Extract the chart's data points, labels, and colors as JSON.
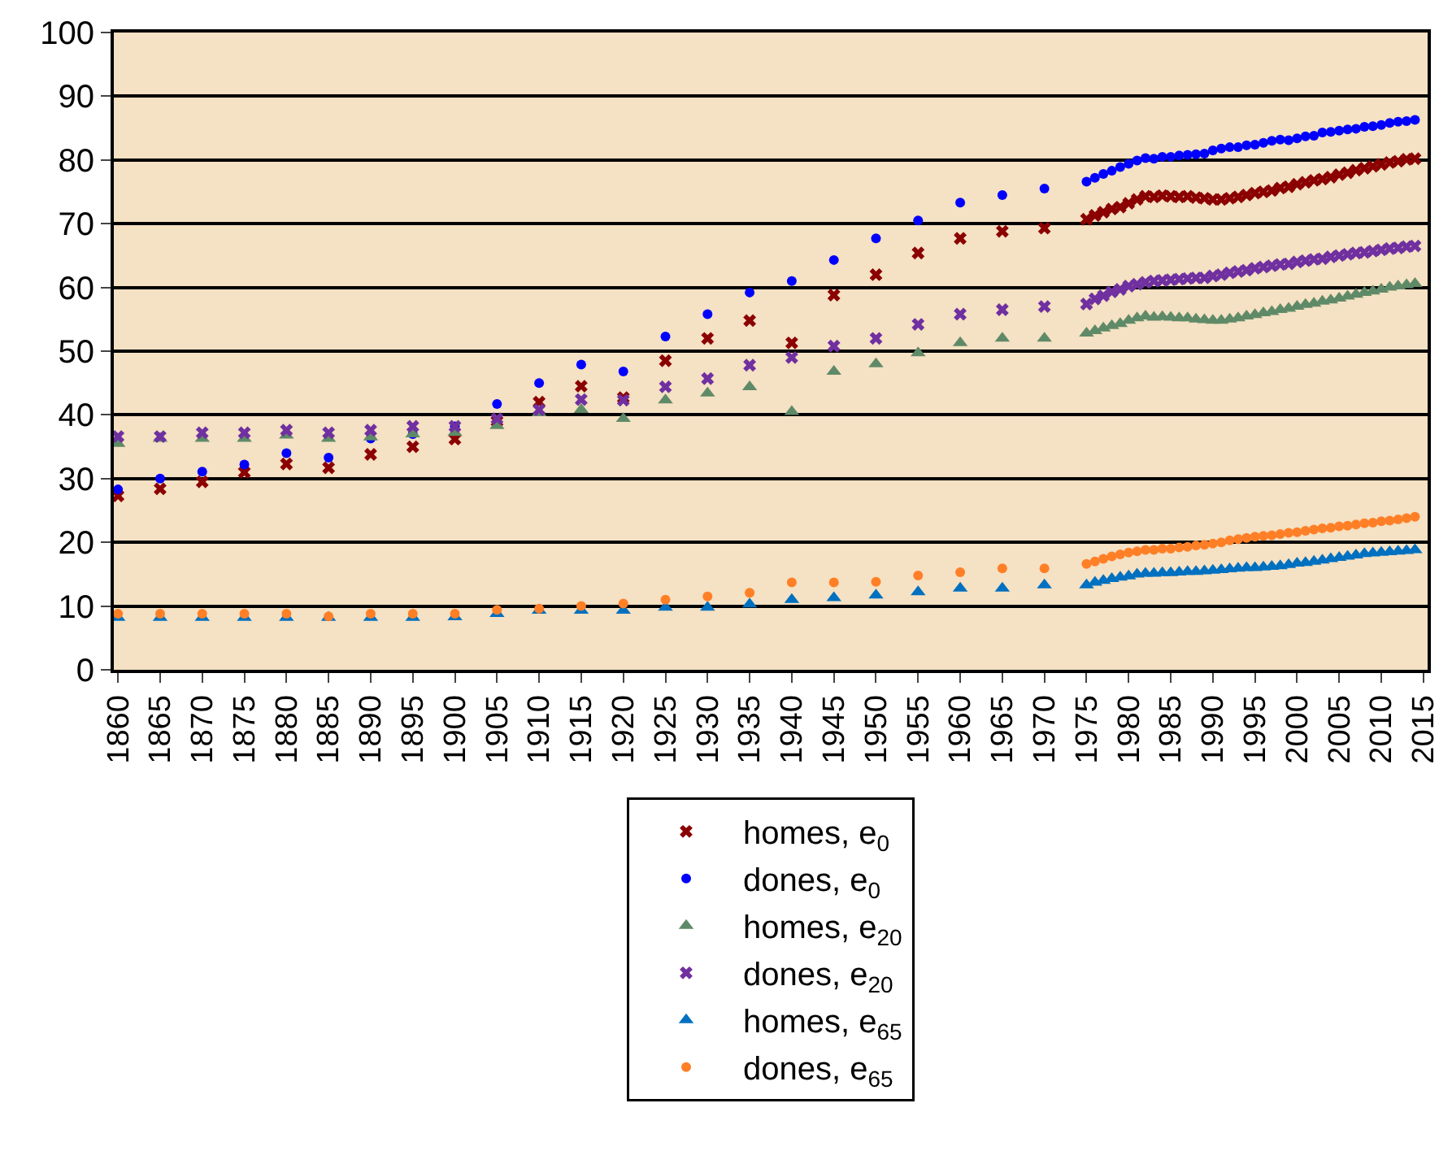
{
  "chart_data": {
    "type": "scatter",
    "x": [
      1860,
      1865,
      1870,
      1875,
      1880,
      1885,
      1890,
      1895,
      1900,
      1905,
      1910,
      1915,
      1920,
      1925,
      1930,
      1935,
      1940,
      1945,
      1950,
      1955,
      1960,
      1965,
      1970,
      1975,
      1976,
      1977,
      1978,
      1979,
      1980,
      1981,
      1982,
      1983,
      1984,
      1985,
      1986,
      1987,
      1988,
      1989,
      1990,
      1991,
      1992,
      1993,
      1994,
      1995,
      1996,
      1997,
      1998,
      1999,
      2000,
      2001,
      2002,
      2003,
      2004,
      2005,
      2006,
      2007,
      2008,
      2009,
      2010,
      2011,
      2012,
      2013,
      2014
    ],
    "series": [
      {
        "name": "homes, e$_{0}$",
        "color": "#8b0000",
        "marker": "cross",
        "values": [
          27.3,
          28.4,
          29.5,
          31,
          32.3,
          31.7,
          33.8,
          35,
          36.2,
          39,
          42,
          44.5,
          42.7,
          48.5,
          52,
          54.8,
          51.3,
          58.8,
          62,
          65.4,
          67.7,
          68.8,
          69.3,
          70.7,
          71.3,
          71.8,
          72.3,
          72.6,
          73.2,
          73.8,
          74.3,
          74.2,
          74.4,
          74.3,
          74.2,
          74.3,
          74.1,
          74,
          73.8,
          73.8,
          74,
          74.2,
          74.5,
          74.8,
          75,
          75.2,
          75.6,
          75.8,
          76.2,
          76.5,
          76.8,
          77,
          77.3,
          77.7,
          78,
          78.4,
          78.7,
          79,
          79.3,
          79.6,
          79.8,
          80.1,
          80.2
        ]
      },
      {
        "name": "dones, e$_{0}$",
        "color": "#0000ff",
        "marker": "circle",
        "values": [
          28.3,
          30,
          31.1,
          32.2,
          34,
          33.3,
          36.3,
          37,
          38.2,
          41.7,
          45,
          47.9,
          46.8,
          52.3,
          55.8,
          59.2,
          61,
          64.3,
          67.7,
          70.5,
          73.3,
          74.5,
          75.5,
          76.6,
          77.2,
          77.8,
          78.3,
          78.9,
          79.4,
          79.9,
          80.3,
          80.2,
          80.5,
          80.5,
          80.7,
          80.8,
          80.9,
          81,
          81.5,
          81.8,
          82,
          82,
          82.3,
          82.4,
          82.7,
          83,
          83.2,
          83.1,
          83.4,
          83.7,
          83.8,
          84.3,
          84.4,
          84.6,
          84.8,
          84.9,
          85.2,
          85.3,
          85.5,
          85.8,
          86,
          86.1,
          86.3
        ]
      },
      {
        "name": "homes, e$_{20}$",
        "color": "#5f8a68",
        "marker": "triangle",
        "values": [
          35.5,
          36.3,
          36.3,
          36.3,
          36.8,
          36.3,
          36.5,
          37,
          37.2,
          38.3,
          40.3,
          40.8,
          39.4,
          42.3,
          43.4,
          44.4,
          40.5,
          46.8,
          48,
          49.7,
          51.3,
          52,
          52,
          52.8,
          53.2,
          53.6,
          54,
          54.3,
          54.8,
          55.2,
          55.5,
          55.3,
          55.4,
          55.3,
          55.2,
          55.2,
          55,
          54.9,
          54.8,
          54.8,
          55,
          55.2,
          55.5,
          55.7,
          56,
          56.2,
          56.5,
          56.7,
          57,
          57.3,
          57.5,
          57.8,
          58,
          58.3,
          58.6,
          58.9,
          59.2,
          59.4,
          59.7,
          60,
          60.2,
          60.4,
          60.6
        ]
      },
      {
        "name": "dones, e$_{20}$",
        "color": "#7030a0",
        "marker": "cross",
        "values": [
          36.6,
          36.6,
          37.2,
          37.2,
          37.6,
          37.2,
          37.6,
          38.2,
          38.2,
          39.4,
          40.8,
          42.4,
          42.3,
          44.4,
          45.7,
          47.8,
          49,
          50.8,
          52,
          54.2,
          55.8,
          56.5,
          57,
          57.4,
          58.2,
          58.7,
          59.3,
          59.7,
          60.2,
          60.5,
          60.8,
          61,
          61.1,
          61.2,
          61.3,
          61.4,
          61.5,
          61.5,
          61.8,
          62,
          62.3,
          62.5,
          62.7,
          63,
          63.2,
          63.4,
          63.6,
          63.7,
          64,
          64.2,
          64.4,
          64.5,
          64.8,
          65,
          65.2,
          65.4,
          65.5,
          65.7,
          65.9,
          66.1,
          66.2,
          66.4,
          66.5
        ]
      },
      {
        "name": "homes, e$_{65}$",
        "color": "#0070c0",
        "marker": "triangle",
        "values": [
          8.2,
          8.2,
          8.2,
          8.2,
          8.2,
          8.2,
          8.2,
          8.2,
          8.3,
          8.8,
          9.3,
          9.3,
          9.3,
          9.8,
          9.8,
          10.3,
          11,
          11.3,
          11.7,
          12.2,
          12.8,
          12.8,
          13.3,
          13.3,
          13.7,
          14,
          14.3,
          14.5,
          14.7,
          15,
          15.1,
          15.1,
          15.2,
          15.2,
          15.3,
          15.4,
          15.4,
          15.5,
          15.6,
          15.7,
          15.8,
          15.9,
          16,
          16,
          16.1,
          16.2,
          16.3,
          16.5,
          16.7,
          16.8,
          17,
          17.2,
          17.4,
          17.6,
          17.8,
          18,
          18.2,
          18.3,
          18.4,
          18.5,
          18.6,
          18.7,
          18.8
        ]
      },
      {
        "name": "dones, e$_{65}$",
        "color": "#ff7f27",
        "marker": "circle",
        "values": [
          8.8,
          8.8,
          8.8,
          8.8,
          8.8,
          8.4,
          8.8,
          8.8,
          8.8,
          9.4,
          9.6,
          10,
          10.4,
          11,
          11.5,
          12.1,
          13.7,
          13.7,
          13.8,
          14.8,
          15.3,
          15.9,
          15.9,
          16.6,
          17,
          17.4,
          17.8,
          18.1,
          18.4,
          18.6,
          18.8,
          18.8,
          19,
          19,
          19.2,
          19.3,
          19.5,
          19.6,
          19.8,
          20,
          20.3,
          20.5,
          20.7,
          20.9,
          21,
          21.1,
          21.3,
          21.5,
          21.6,
          21.8,
          22,
          22.2,
          22.3,
          22.5,
          22.6,
          22.8,
          23,
          23.1,
          23.3,
          23.4,
          23.6,
          23.8,
          24
        ]
      }
    ],
    "xlim": [
      1859.5,
      2015.5
    ],
    "xticks": [
      1860,
      1865,
      1870,
      1875,
      1880,
      1885,
      1890,
      1895,
      1900,
      1905,
      1910,
      1915,
      1920,
      1925,
      1930,
      1935,
      1940,
      1945,
      1950,
      1955,
      1960,
      1965,
      1970,
      1975,
      1980,
      1985,
      1990,
      1995,
      2000,
      2005,
      2010,
      2015
    ],
    "ylim": [
      0,
      100
    ],
    "yticks": [
      0,
      10,
      20,
      30,
      40,
      50,
      60,
      70,
      80,
      90,
      100
    ],
    "grid": "y",
    "legend": "bottom"
  }
}
